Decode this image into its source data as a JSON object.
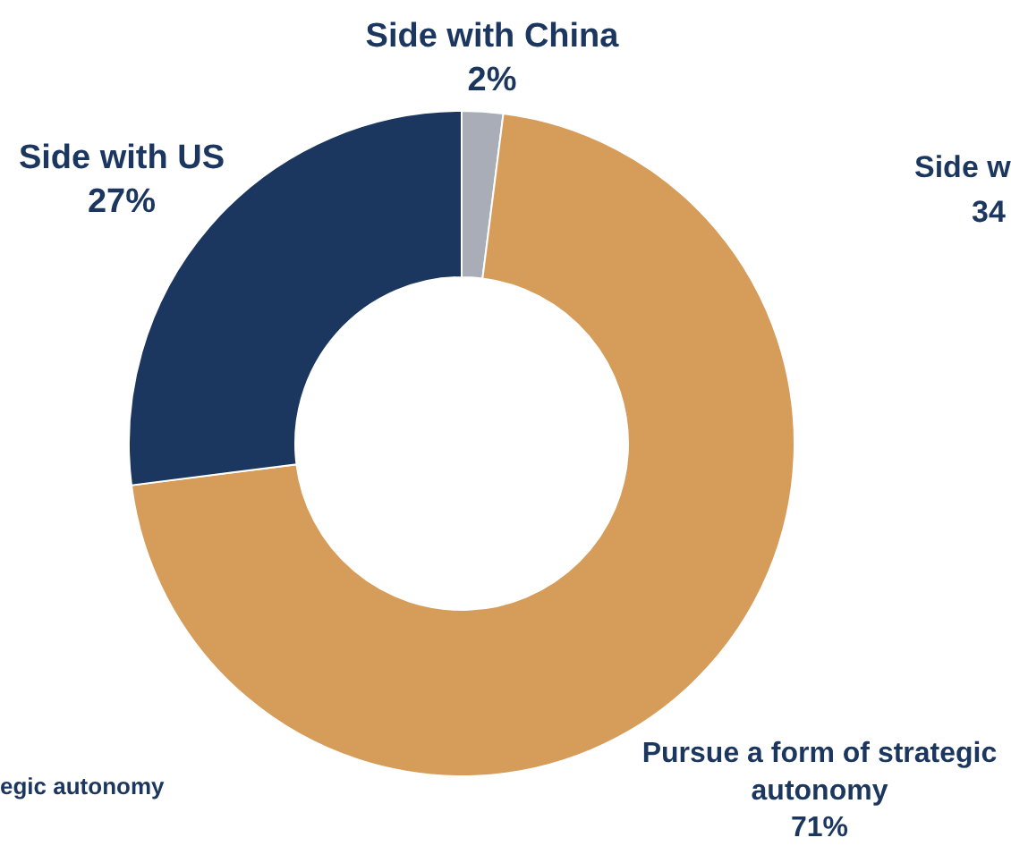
{
  "chart_data": {
    "type": "donut",
    "categories": [
      "Side with China",
      "Pursue a form of strategic autonomy",
      "Side with US"
    ],
    "values": [
      2,
      71,
      27
    ],
    "value_labels": [
      "2%",
      "71%",
      "27%"
    ],
    "colors": [
      "#a9adb8",
      "#d69c5a",
      "#1b365f"
    ],
    "annotations": [
      "Side w",
      "34",
      "egic autonomy"
    ]
  }
}
